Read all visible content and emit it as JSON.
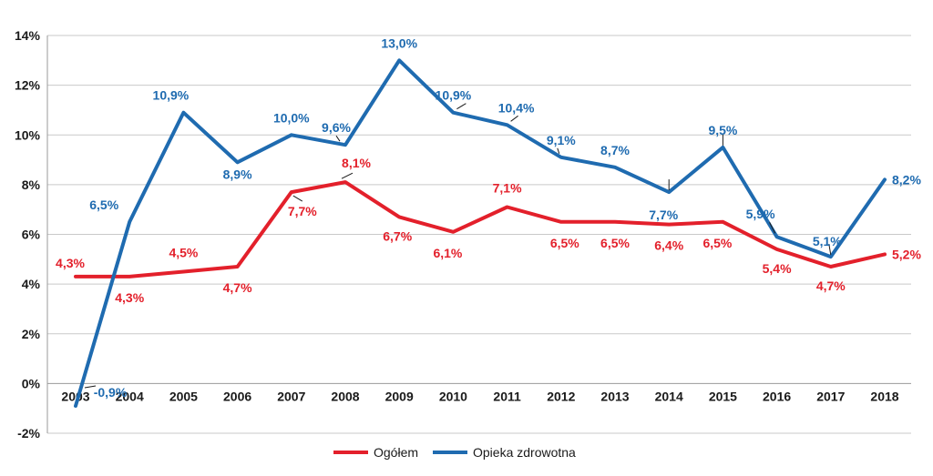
{
  "chart_data": {
    "type": "line",
    "title": "",
    "xlabel": "",
    "ylabel": "",
    "categories": [
      "2003",
      "2004",
      "2005",
      "2006",
      "2007",
      "2008",
      "2009",
      "2010",
      "2011",
      "2012",
      "2013",
      "2014",
      "2015",
      "2016",
      "2017",
      "2018"
    ],
    "ylim": [
      -2,
      14
    ],
    "yticks": [
      "-2%",
      "0%",
      "2%",
      "4%",
      "6%",
      "8%",
      "10%",
      "12%",
      "14%"
    ],
    "grid": true,
    "legend_position": "bottom",
    "series": [
      {
        "name": "Ogółem",
        "color": "#e3202b",
        "values": [
          4.3,
          4.3,
          4.5,
          4.7,
          7.7,
          8.1,
          6.7,
          6.1,
          7.1,
          6.5,
          6.5,
          6.4,
          6.5,
          5.4,
          4.7,
          5.2
        ],
        "labels": [
          "4,3%",
          "4,3%",
          "4,5%",
          "4,7%",
          "7,7%",
          "8,1%",
          "6,7%",
          "6,1%",
          "7,1%",
          "6,5%",
          "6,5%",
          "6,4%",
          "6,5%",
          "5,4%",
          "4,7%",
          "5,2%"
        ]
      },
      {
        "name": "Opieka zdrowotna",
        "color": "#1f6bb0",
        "values": [
          -0.9,
          6.5,
          10.9,
          8.9,
          10.0,
          9.6,
          13.0,
          10.9,
          10.4,
          9.1,
          8.7,
          7.7,
          9.5,
          5.9,
          5.1,
          8.2
        ],
        "labels": [
          "-0,9%",
          "6,5%",
          "10,9%",
          "8,9%",
          "10,0%",
          "9,6%",
          "13,0%",
          "10,9%",
          "10,4%",
          "9,1%",
          "8,7%",
          "7,7%",
          "9,5%",
          "5,9%",
          "5,1%",
          "8,2%"
        ]
      }
    ]
  }
}
